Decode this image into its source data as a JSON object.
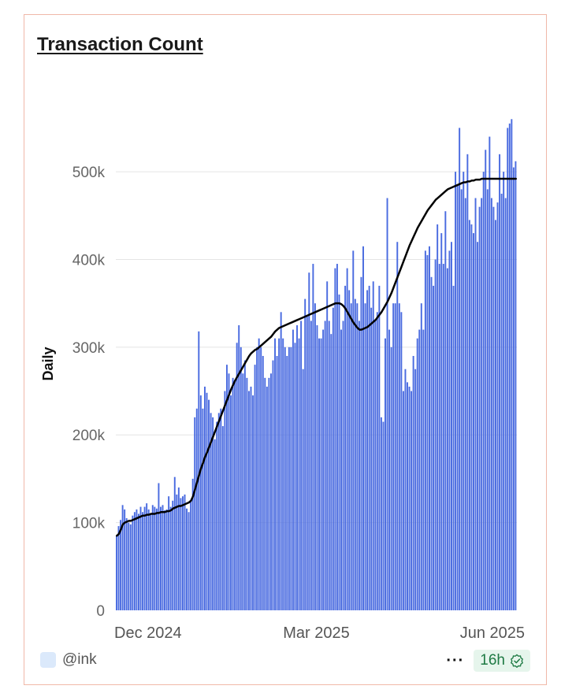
{
  "card": {
    "title": "Transaction Count",
    "source_label": "@ink",
    "more_label": "···",
    "freshness": "16h",
    "colors": {
      "border": "#f0b8a8",
      "bar": "#4a6be0",
      "line": "#000000",
      "badge_bg": "#e6f5ec",
      "badge_text": "#1e7a44",
      "swatch": "#dbe9fb"
    }
  },
  "chart_data": {
    "type": "bar",
    "ylabel": "Daily",
    "ylim": [
      0,
      580000
    ],
    "yticks": [
      0,
      100000,
      200000,
      300000,
      400000,
      500000
    ],
    "ytick_labels": [
      "0",
      "100k",
      "200k",
      "300k",
      "400k",
      "500k"
    ],
    "xtick_labels": [
      "Dec 2024",
      "Mar 2025",
      "Jun 2025"
    ],
    "x_start": "2024-12-01",
    "grid": true,
    "series": [
      {
        "type": "bar",
        "values": [
          85000,
          96000,
          103000,
          120000,
          115000,
          105000,
          100000,
          98000,
          108000,
          112000,
          115000,
          110000,
          118000,
          112000,
          118000,
          122000,
          115000,
          110000,
          120000,
          118000,
          116000,
          145000,
          118000,
          120000,
          114000,
          115000,
          130000,
          118000,
          125000,
          152000,
          132000,
          140000,
          128000,
          130000,
          132000,
          116000,
          112000,
          125000,
          150000,
          220000,
          230000,
          318000,
          245000,
          230000,
          255000,
          248000,
          240000,
          225000,
          220000,
          195000,
          215000,
          225000,
          230000,
          210000,
          250000,
          280000,
          270000,
          245000,
          265000,
          262000,
          305000,
          325000,
          300000,
          270000,
          285000,
          265000,
          250000,
          255000,
          245000,
          280000,
          300000,
          310000,
          300000,
          290000,
          265000,
          255000,
          265000,
          270000,
          285000,
          310000,
          290000,
          310000,
          340000,
          310000,
          300000,
          290000,
          300000,
          300000,
          320000,
          305000,
          325000,
          310000,
          330000,
          275000,
          355000,
          335000,
          385000,
          330000,
          395000,
          350000,
          325000,
          310000,
          310000,
          320000,
          330000,
          375000,
          330000,
          315000,
          345000,
          390000,
          395000,
          360000,
          320000,
          330000,
          370000,
          390000,
          365000,
          350000,
          410000,
          355000,
          350000,
          330000,
          380000,
          415000,
          350000,
          365000,
          370000,
          345000,
          375000,
          330000,
          340000,
          370000,
          220000,
          215000,
          310000,
          470000,
          320000,
          300000,
          350000,
          350000,
          420000,
          350000,
          340000,
          250000,
          275000,
          260000,
          255000,
          250000,
          290000,
          275000,
          310000,
          320000,
          350000,
          320000,
          410000,
          405000,
          415000,
          380000,
          370000,
          400000,
          440000,
          395000,
          430000,
          395000,
          455000,
          390000,
          410000,
          420000,
          370000,
          500000,
          485000,
          550000,
          480000,
          500000,
          470000,
          520000,
          445000,
          440000,
          430000,
          470000,
          420000,
          460000,
          470000,
          500000,
          525000,
          480000,
          540000,
          470000,
          460000,
          445000,
          465000,
          520000,
          475000,
          500000,
          470000,
          550000,
          555000,
          560000,
          505000,
          512000
        ]
      },
      {
        "type": "line",
        "values": [
          85000,
          87000,
          92000,
          98000,
          100000,
          101000,
          102000,
          102000,
          103000,
          104000,
          105000,
          106000,
          107000,
          108000,
          108000,
          109000,
          109000,
          110000,
          110000,
          110000,
          111000,
          111000,
          112000,
          112000,
          112000,
          113000,
          113000,
          114000,
          116000,
          117000,
          118000,
          119000,
          119000,
          120000,
          121000,
          122000,
          123000,
          125000,
          130000,
          138000,
          146000,
          154000,
          162000,
          168000,
          175000,
          180000,
          186000,
          192000,
          198000,
          204000,
          210000,
          216000,
          222000,
          228000,
          234000,
          240000,
          246000,
          252000,
          257000,
          262000,
          266000,
          270000,
          274000,
          278000,
          282000,
          286000,
          290000,
          293000,
          295000,
          297000,
          298000,
          300000,
          302000,
          304000,
          306000,
          308000,
          310000,
          312000,
          315000,
          318000,
          320000,
          322000,
          323000,
          324000,
          325000,
          326000,
          327000,
          328000,
          329000,
          330000,
          331000,
          332000,
          333000,
          334000,
          335000,
          336000,
          337000,
          338000,
          339000,
          340000,
          341000,
          342000,
          343000,
          344000,
          345000,
          346000,
          347000,
          348000,
          349000,
          350000,
          350000,
          350000,
          349000,
          347000,
          344000,
          340000,
          336000,
          332000,
          328000,
          325000,
          322000,
          320000,
          320000,
          321000,
          322000,
          323000,
          325000,
          327000,
          329000,
          331000,
          334000,
          337000,
          340000,
          344000,
          348000,
          352000,
          357000,
          362000,
          368000,
          374000,
          380000,
          386000,
          392000,
          398000,
          404000,
          410000,
          416000,
          421000,
          426000,
          431000,
          436000,
          440000,
          444000,
          448000,
          452000,
          456000,
          459000,
          462000,
          465000,
          468000,
          470000,
          472000,
          474000,
          476000,
          478000,
          480000,
          481000,
          482000,
          483000,
          484000,
          485000,
          486000,
          487000,
          488000,
          488000,
          489000,
          489000,
          490000,
          490000,
          491000,
          491000,
          491000,
          492000,
          492000,
          492000,
          492000,
          492000,
          492000,
          492000,
          492000,
          492000,
          492000,
          492000,
          492000,
          492000,
          492000,
          492000,
          492000,
          492000,
          492000
        ]
      }
    ]
  }
}
